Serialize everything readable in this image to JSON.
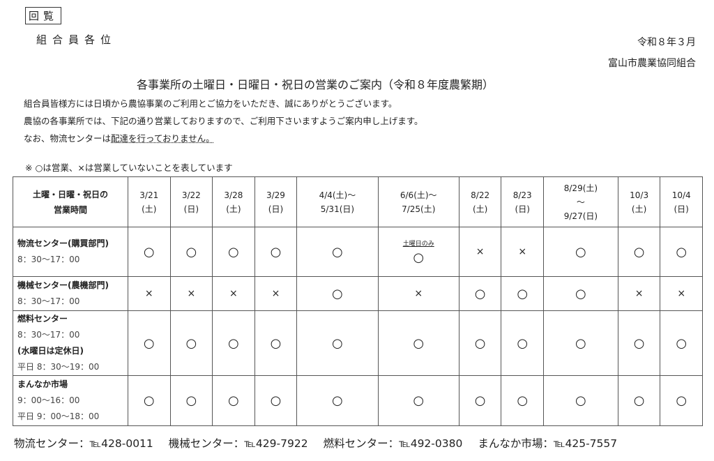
{
  "stamp": "回覧",
  "addressee": "組合員各位",
  "date": "令和８年３月",
  "organization": "富山市農業協同組合",
  "title": "各事業所の土曜日・日曜日・祝日の営業のご案内（令和８年度農繁期）",
  "paragraphs": {
    "p1": "組合員皆様方には日頃から農協事業のご利用とご協力をいただき、誠にありがとうございます。",
    "p2": "農協の各事業所では、下記の通り営業しておりますので、ご利用下さいますようご案内申し上げます。",
    "p3_a": "なお、物流センターは",
    "p3_b": "配達を行っておりません。"
  },
  "legend": "※ ○は営業、×は営業していないことを表しています",
  "table": {
    "corner": [
      "土曜・日曜・祝日の",
      "営業時間"
    ],
    "columns": [
      [
        "3/21",
        "(土)"
      ],
      [
        "3/22",
        "(日)"
      ],
      [
        "3/28",
        "(土)"
      ],
      [
        "3/29",
        "(日)"
      ],
      [
        "4/4(土)～",
        "5/31(日)"
      ],
      [
        "6/6(土)～",
        "7/25(土)"
      ],
      [
        "8/22",
        "(土)"
      ],
      [
        "8/23",
        "(日)"
      ],
      [
        "8/29(土)",
        "～",
        "9/27(日)"
      ],
      [
        "10/3",
        "(土)"
      ],
      [
        "10/4",
        "(日)"
      ]
    ],
    "rows": [
      {
        "name": "物流センター(購買部門)",
        "lines": [
          "8：30～17：00"
        ],
        "marks": [
          "○",
          "○",
          "○",
          "○",
          "○",
          "○",
          "×",
          "×",
          "○",
          "○",
          "○"
        ],
        "notes": {
          "5": "土曜日のみ"
        }
      },
      {
        "name": "機械センター(農機部門)",
        "lines": [
          "8：30～17：00"
        ],
        "marks": [
          "×",
          "×",
          "×",
          "×",
          "○",
          "×",
          "○",
          "○",
          "○",
          "×",
          "×"
        ],
        "notes": {}
      },
      {
        "name": "燃料センター",
        "lines": [
          "8：30～17：00",
          "(水曜日は定休日)",
          "平日 8：30～19：00"
        ],
        "marks": [
          "○",
          "○",
          "○",
          "○",
          "○",
          "○",
          "○",
          "○",
          "○",
          "○",
          "○"
        ],
        "notes": {}
      },
      {
        "name": "まんなか市場",
        "lines": [
          "9：00～16：00",
          "平日 9：00～18：00"
        ],
        "marks": [
          "○",
          "○",
          "○",
          "○",
          "○",
          "○",
          "○",
          "○",
          "○",
          "○",
          "○"
        ],
        "notes": {}
      }
    ]
  },
  "footer": [
    "物流センター：℡428-0011",
    "機械センター：℡429-7922",
    "燃料センター：℡492-0380",
    "まんなか市場：℡425-7557"
  ]
}
